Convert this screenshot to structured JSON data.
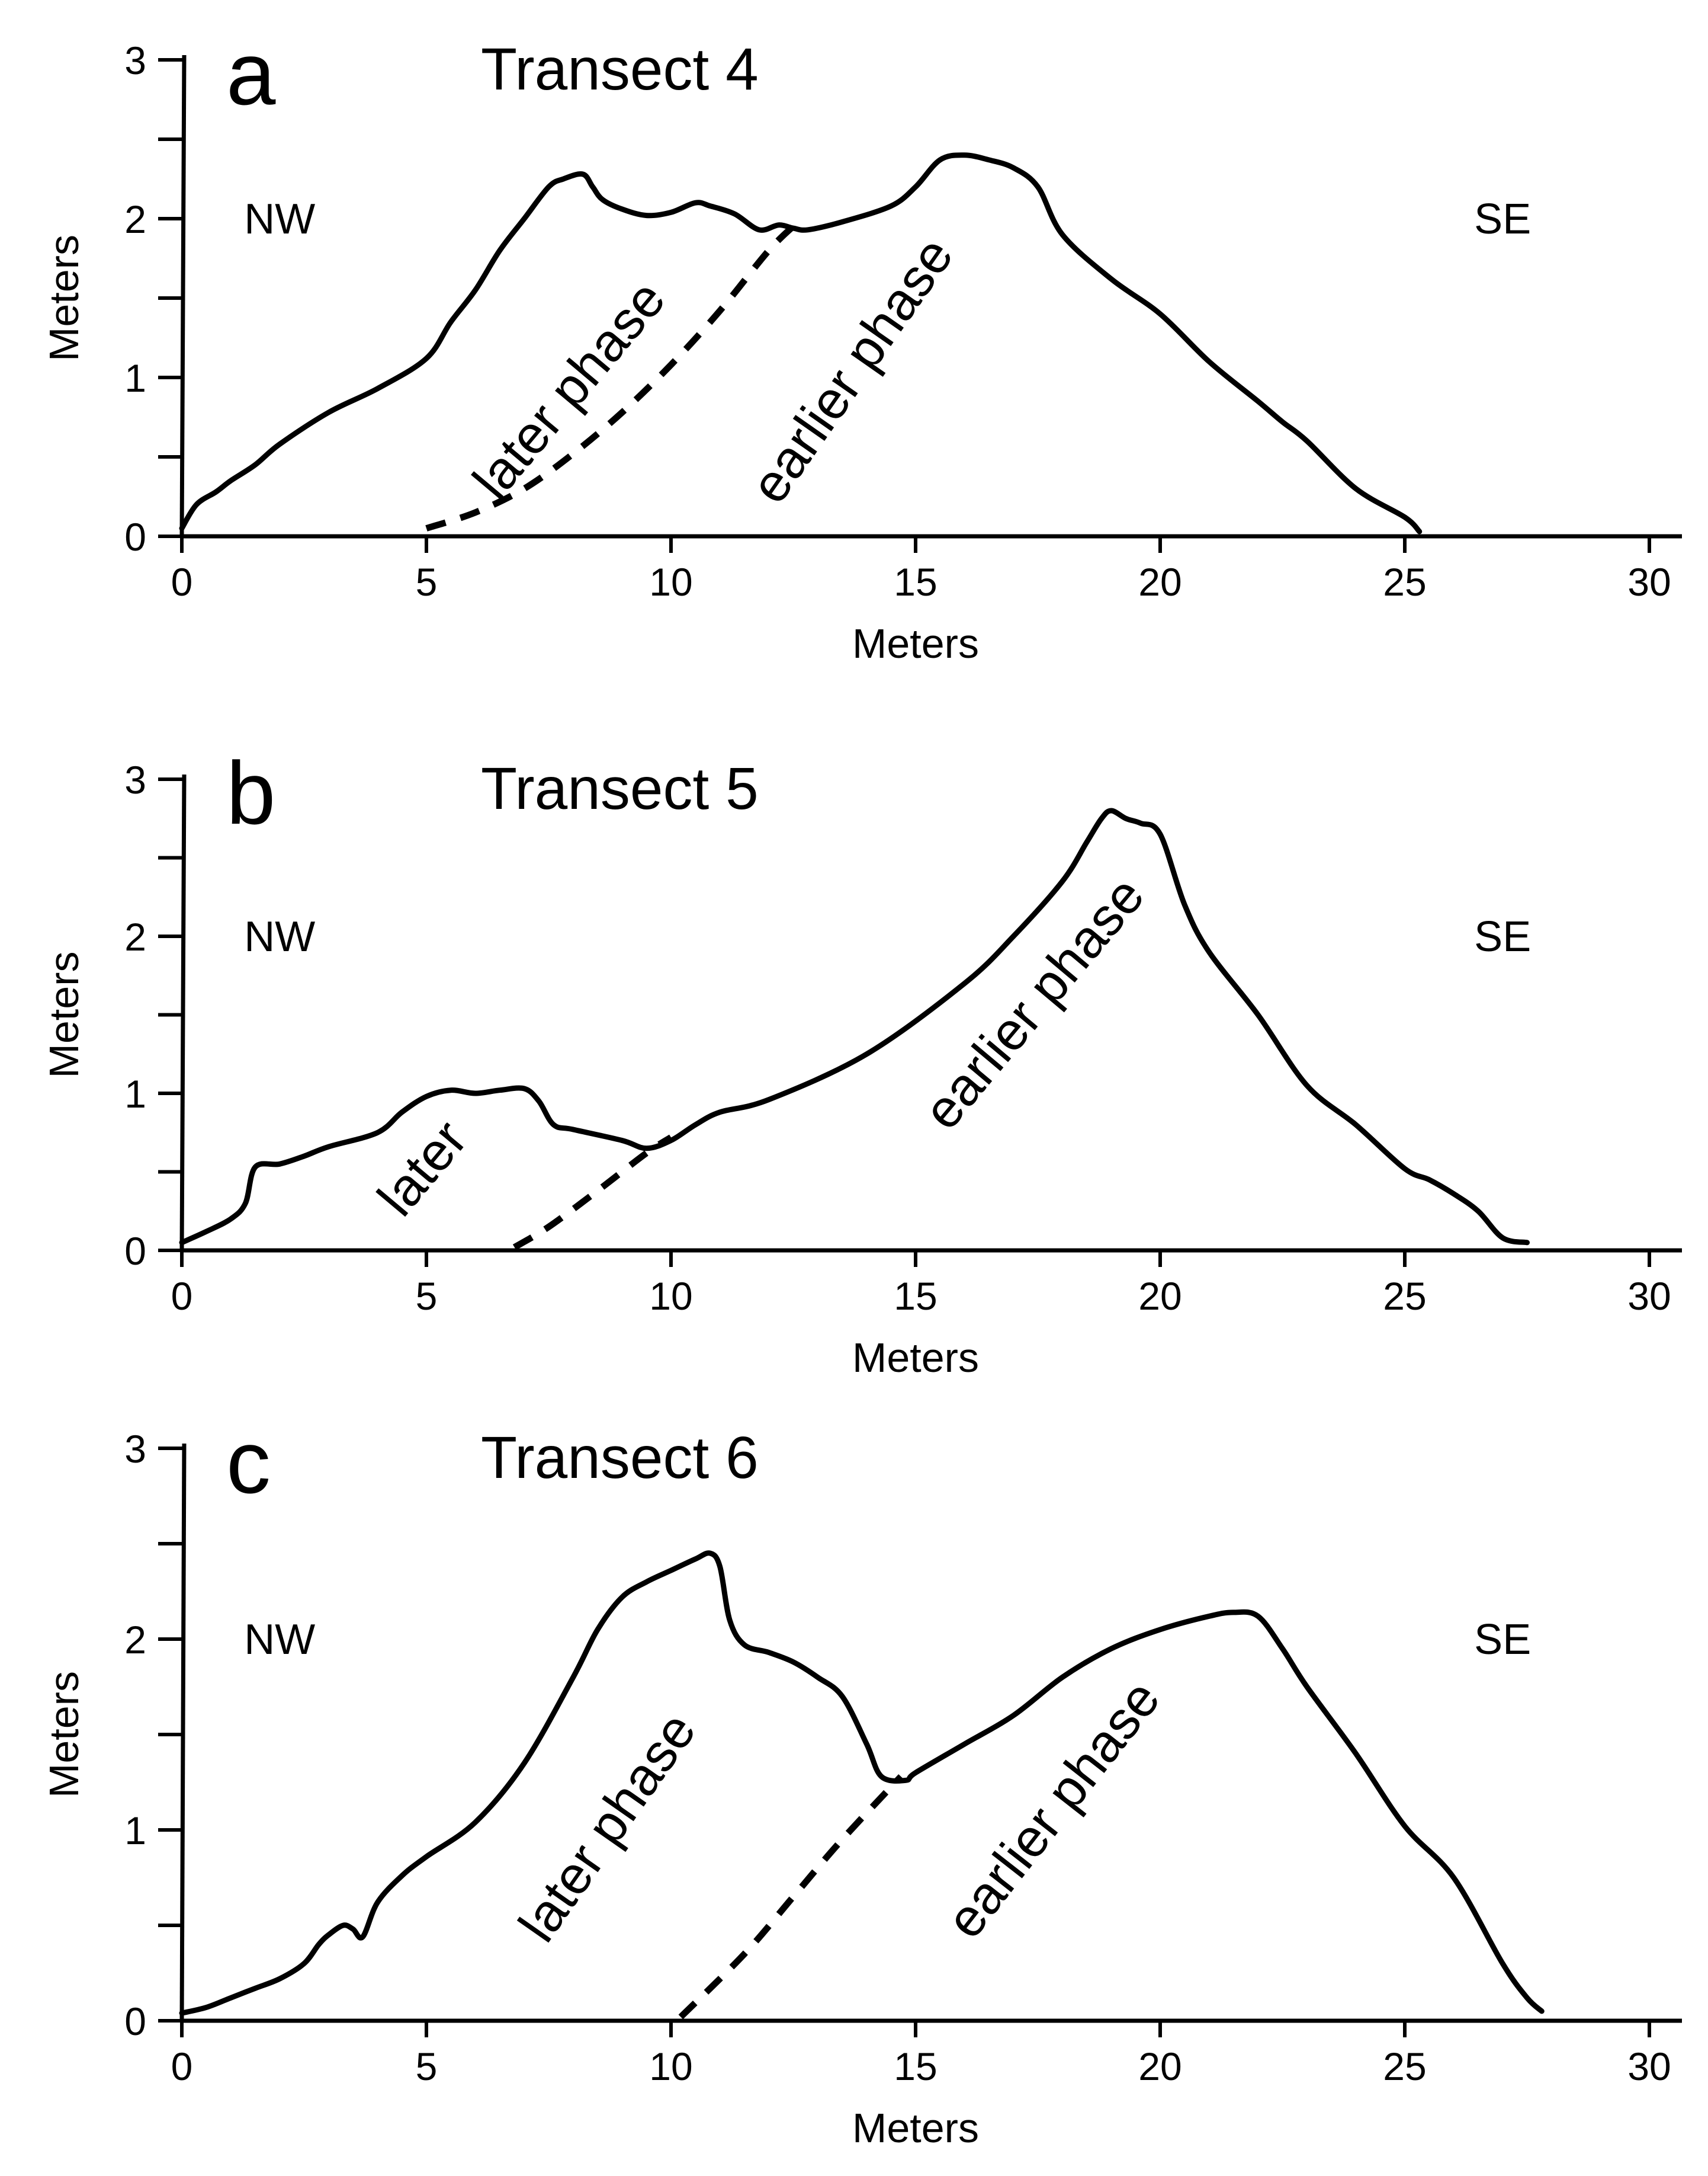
{
  "colors": {
    "line": "#000000",
    "background": "#ffffff"
  },
  "chart_data": [
    {
      "type": "line",
      "panel": "a",
      "title": "Transect 4",
      "xlabel": "Meters",
      "ylabel": "Meters",
      "xlim": [
        0,
        30
      ],
      "ylim": [
        0,
        3
      ],
      "xticks": [
        "0",
        "5",
        "10",
        "15",
        "20",
        "25",
        "30"
      ],
      "yticks": [
        "0",
        "1",
        "2",
        "3"
      ],
      "left_label": "NW",
      "right_label": "SE",
      "series": [
        {
          "name": "profile",
          "x": [
            0,
            0.3,
            0.7,
            1.0,
            1.5,
            2.0,
            3.0,
            4.0,
            5.0,
            5.5,
            6.0,
            6.5,
            7.0,
            7.5,
            7.8,
            8.2,
            8.4,
            8.6,
            9.0,
            9.5,
            10.0,
            10.5,
            10.8,
            11.3,
            11.8,
            12.2,
            12.5,
            12.8,
            13.5,
            14.5,
            15.0,
            15.5,
            16.0,
            16.5,
            17.0,
            17.5,
            18.0,
            19.0,
            20.0,
            21.0,
            22.0,
            22.5,
            23.0,
            24.0,
            25.0,
            25.3
          ],
          "y": [
            0.05,
            0.2,
            0.28,
            0.35,
            0.45,
            0.58,
            0.78,
            0.93,
            1.12,
            1.35,
            1.55,
            1.8,
            2.0,
            2.2,
            2.25,
            2.28,
            2.2,
            2.12,
            2.06,
            2.02,
            2.04,
            2.1,
            2.08,
            2.03,
            1.93,
            1.96,
            1.94,
            1.93,
            1.98,
            2.08,
            2.2,
            2.37,
            2.4,
            2.37,
            2.32,
            2.2,
            1.9,
            1.62,
            1.4,
            1.1,
            0.85,
            0.72,
            0.6,
            0.3,
            0.12,
            0.03
          ]
        },
        {
          "name": "phase boundary",
          "style": "dashed",
          "x": [
            5.0,
            6.0,
            7.0,
            8.0,
            9.0,
            10.0,
            11.0,
            12.0,
            12.6
          ],
          "y": [
            0.05,
            0.15,
            0.3,
            0.52,
            0.78,
            1.08,
            1.42,
            1.8,
            1.98
          ]
        }
      ],
      "annotations": [
        {
          "text": "later phase",
          "x": 8.2,
          "y": 0.85,
          "angle": -50
        },
        {
          "text": "earlier phase",
          "x": 14.0,
          "y": 0.98,
          "angle": -55
        }
      ]
    },
    {
      "type": "line",
      "panel": "b",
      "title": "Transect 5",
      "xlabel": "Meters",
      "ylabel": "Meters",
      "xlim": [
        0,
        30
      ],
      "ylim": [
        0,
        3
      ],
      "xticks": [
        "0",
        "5",
        "10",
        "15",
        "20",
        "25",
        "30"
      ],
      "yticks": [
        "0",
        "1",
        "2",
        "3"
      ],
      "left_label": "NW",
      "right_label": "SE",
      "series": [
        {
          "name": "profile",
          "x": [
            0,
            0.5,
            1.0,
            1.3,
            1.5,
            2.0,
            2.5,
            3.0,
            4.0,
            4.5,
            5.0,
            5.5,
            6.0,
            6.5,
            7.0,
            7.3,
            7.6,
            8.0,
            9.0,
            9.5,
            10.0,
            10.5,
            11.0,
            12.0,
            14.0,
            16.0,
            17.0,
            18.0,
            18.5,
            18.8,
            19.0,
            19.3,
            19.6,
            20.0,
            20.5,
            21.0,
            22.0,
            23.0,
            24.0,
            25.0,
            25.5,
            26.0,
            26.5,
            27.0,
            27.5
          ],
          "y": [
            0.05,
            0.12,
            0.2,
            0.3,
            0.53,
            0.55,
            0.6,
            0.66,
            0.75,
            0.88,
            0.98,
            1.02,
            1.0,
            1.02,
            1.03,
            0.95,
            0.8,
            0.77,
            0.7,
            0.65,
            0.7,
            0.8,
            0.88,
            0.96,
            1.25,
            1.7,
            2.0,
            2.35,
            2.6,
            2.75,
            2.8,
            2.75,
            2.72,
            2.65,
            2.2,
            1.9,
            1.5,
            1.05,
            0.8,
            0.52,
            0.45,
            0.36,
            0.25,
            0.08,
            0.05
          ]
        },
        {
          "name": "phase boundary",
          "style": "dashed",
          "x": [
            6.8,
            7.5,
            8.5,
            9.5,
            10.0
          ],
          "y": [
            0.02,
            0.15,
            0.38,
            0.62,
            0.72
          ]
        }
      ],
      "annotations": [
        {
          "text": "later",
          "x": 5.2,
          "y": 0.45,
          "angle": -50
        },
        {
          "text": "earlier phase",
          "x": 17.7,
          "y": 1.5,
          "angle": -50
        }
      ]
    },
    {
      "type": "line",
      "panel": "c",
      "title": "Transect 6",
      "xlabel": "Meters",
      "ylabel": "Meters",
      "xlim": [
        0,
        30
      ],
      "ylim": [
        0,
        3
      ],
      "xticks": [
        "0",
        "5",
        "10",
        "15",
        "20",
        "25",
        "30"
      ],
      "yticks": [
        "0",
        "1",
        "2",
        "3"
      ],
      "left_label": "NW",
      "right_label": "SE",
      "series": [
        {
          "name": "profile",
          "x": [
            0,
            0.5,
            1.0,
            1.5,
            2.0,
            2.5,
            2.8,
            3.0,
            3.3,
            3.5,
            3.7,
            4.0,
            4.5,
            5.0,
            6.0,
            7.0,
            8.0,
            8.5,
            9.0,
            9.5,
            10.0,
            10.5,
            10.8,
            11.0,
            11.2,
            11.5,
            12.0,
            12.5,
            13.0,
            13.5,
            14.0,
            14.3,
            14.8,
            15.0,
            16.0,
            17.0,
            18.0,
            19.0,
            20.0,
            21.0,
            21.5,
            22.0,
            22.5,
            23.0,
            24.0,
            25.0,
            26.0,
            27.0,
            27.5,
            27.8
          ],
          "y": [
            0.04,
            0.07,
            0.12,
            0.17,
            0.22,
            0.3,
            0.4,
            0.45,
            0.5,
            0.48,
            0.44,
            0.62,
            0.76,
            0.86,
            1.04,
            1.35,
            1.8,
            2.05,
            2.22,
            2.3,
            2.36,
            2.42,
            2.45,
            2.38,
            2.1,
            1.97,
            1.93,
            1.88,
            1.8,
            1.7,
            1.45,
            1.28,
            1.26,
            1.3,
            1.45,
            1.6,
            1.8,
            1.95,
            2.05,
            2.12,
            2.14,
            2.12,
            1.95,
            1.75,
            1.4,
            1.02,
            0.75,
            0.3,
            0.12,
            0.05
          ]
        },
        {
          "name": "phase boundary",
          "style": "dashed",
          "x": [
            10.2,
            11.5,
            12.5,
            13.5,
            14.7
          ],
          "y": [
            0.02,
            0.35,
            0.65,
            0.95,
            1.28
          ]
        }
      ],
      "annotations": [
        {
          "text": "later phase",
          "x": 9.0,
          "y": 0.96,
          "angle": -55
        },
        {
          "text": "earlier phase",
          "x": 18.1,
          "y": 1.05,
          "angle": -52
        }
      ]
    }
  ]
}
